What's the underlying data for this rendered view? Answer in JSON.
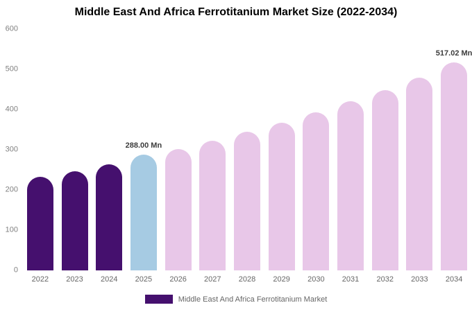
{
  "chart_data": {
    "type": "bar",
    "title": "Middle East And Africa Ferrotitanium Market Size (2022-2034)",
    "categories": [
      "2022",
      "2023",
      "2024",
      "2025",
      "2026",
      "2027",
      "2028",
      "2029",
      "2030",
      "2031",
      "2032",
      "2033",
      "2034"
    ],
    "values": [
      232,
      247,
      263,
      288,
      302,
      322,
      345,
      368,
      393,
      420,
      448,
      480,
      517.02
    ],
    "colors": [
      "#45106e",
      "#45106e",
      "#45106e",
      "#a6cbe3",
      "#e8c7e8",
      "#e8c7e8",
      "#e8c7e8",
      "#e8c7e8",
      "#e8c7e8",
      "#e8c7e8",
      "#e8c7e8",
      "#e8c7e8",
      "#e8c7e8"
    ],
    "annotations": [
      {
        "category": "2025",
        "text": "288.00 Mn"
      },
      {
        "category": "2034",
        "text": "517.02 Mn"
      }
    ],
    "xlabel": "",
    "ylabel": "",
    "ylim": [
      0,
      600
    ],
    "yticks": [
      0,
      100,
      200,
      300,
      400,
      500,
      600
    ],
    "grid": false,
    "legend": {
      "position": "bottom",
      "entries": [
        {
          "label": "Middle East And Africa Ferrotitanium Market",
          "color": "#45106e"
        }
      ]
    }
  }
}
